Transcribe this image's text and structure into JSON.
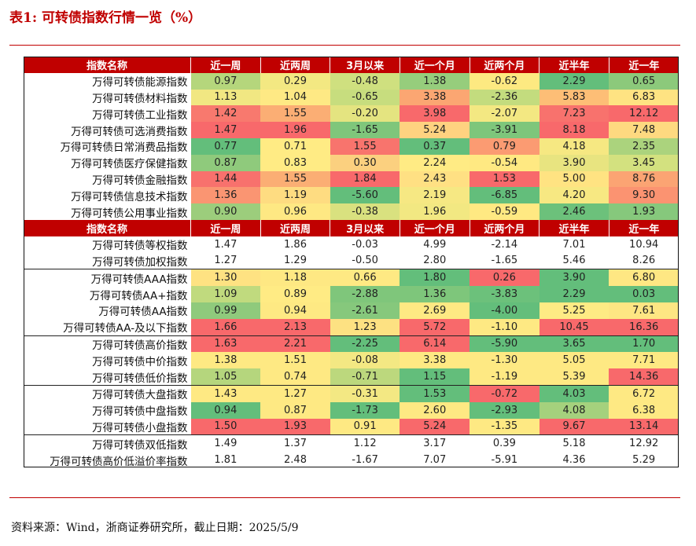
{
  "title": "表1:  可转债指数行情一览（%）",
  "header": [
    "指数名称",
    "近一周",
    "近两周",
    "3月以来",
    "近一个月",
    "近两个月",
    "近半年",
    "近一年"
  ],
  "colors": {
    "header_bg": "#c00000",
    "rule": "#c00000",
    "green": "#63be7b",
    "yellow": "#ffeb84",
    "red": "#f8696b"
  },
  "sections": [
    {
      "has_header": true,
      "groups": [
        [
          {
            "name": "万得可转债能源指数",
            "values": [
              "0.97",
              "0.29",
              "-0.48",
              "1.38",
              "-0.62",
              "2.29",
              "0.65"
            ],
            "colors": [
              "#b5d67c",
              "#f3e882",
              "#cfe07f",
              "#96cd7c",
              "#fde981",
              "#63be7b",
              "#8cc97b"
            ]
          },
          {
            "name": "万得可转债材料指数",
            "values": [
              "1.13",
              "1.04",
              "-0.65",
              "3.38",
              "-2.36",
              "5.83",
              "6.83"
            ],
            "colors": [
              "#f1e782",
              "#fee984",
              "#c7dd7e",
              "#fba672",
              "#c3dc7e",
              "#fdbe76",
              "#fee382"
            ]
          },
          {
            "name": "万得可转债工业指数",
            "values": [
              "1.42",
              "1.55",
              "-0.20",
              "3.98",
              "-2.07",
              "7.23",
              "12.12"
            ],
            "colors": [
              "#f8796e",
              "#fbae74",
              "#e4e480",
              "#f8696b",
              "#f3e882",
              "#f8726d",
              "#f8696b"
            ]
          },
          {
            "name": "万得可转债可选消费指数",
            "values": [
              "1.47",
              "1.96",
              "-1.65",
              "5.24",
              "-3.91",
              "8.18",
              "7.48"
            ],
            "colors": [
              "#f8696b",
              "#f8696b",
              "#7fc67b",
              "#fed280",
              "#7ec67b",
              "#f8696b",
              "#fed980"
            ]
          },
          {
            "name": "万得可转债日常消费品指数",
            "values": [
              "0.77",
              "0.71",
              "1.55",
              "0.37",
              "0.79",
              "4.18",
              "2.35"
            ],
            "colors": [
              "#63be7b",
              "#ffeb84",
              "#f8746d",
              "#63be7b",
              "#fb9b72",
              "#f6e882",
              "#abd37d"
            ]
          },
          {
            "name": "万得可转债医疗保健指数",
            "values": [
              "0.87",
              "0.83",
              "0.30",
              "2.24",
              "-0.54",
              "3.90",
              "3.45"
            ],
            "colors": [
              "#8fca7c",
              "#ffeb84",
              "#fbd07f",
              "#ffeb84",
              "#ffe982",
              "#e8e480",
              "#d3e17f"
            ]
          },
          {
            "name": "万得可转债金融指数",
            "values": [
              "1.44",
              "1.55",
              "1.84",
              "2.43",
              "1.53",
              "5.00",
              "8.76"
            ],
            "colors": [
              "#f8716d",
              "#fbae74",
              "#f8696b",
              "#ffe083",
              "#f8696b",
              "#ffe382",
              "#fba473"
            ]
          },
          {
            "name": "万得可转债信息技术指数",
            "values": [
              "1.36",
              "1.19",
              "-5.60",
              "2.19",
              "-6.85",
              "4.20",
              "9.30"
            ],
            "colors": [
              "#fa9572",
              "#fedc81",
              "#63be7b",
              "#f6e883",
              "#63be7b",
              "#f7e882",
              "#fb9371"
            ]
          },
          {
            "name": "万得可转债公用事业指数",
            "values": [
              "0.90",
              "0.96",
              "-0.38",
              "1.96",
              "-0.59",
              "2.46",
              "1.93"
            ],
            "colors": [
              "#9ccd7c",
              "#fee883",
              "#d9e17f",
              "#f2e882",
              "#ffe982",
              "#6cc17b",
              "#86c87c"
            ]
          }
        ]
      ]
    },
    {
      "has_header": true,
      "groups": [
        [
          {
            "name": "万得可转债等权指数",
            "values": [
              "1.47",
              "1.86",
              "-0.03",
              "4.99",
              "-2.14",
              "7.01",
              "10.94"
            ],
            "colors": [
              "#ffffff",
              "#ffffff",
              "#ffffff",
              "#ffffff",
              "#ffffff",
              "#ffffff",
              "#ffffff"
            ]
          },
          {
            "name": "万得可转债加权指数",
            "values": [
              "1.27",
              "1.29",
              "-0.50",
              "2.80",
              "-1.65",
              "5.46",
              "8.26"
            ],
            "colors": [
              "#ffffff",
              "#ffffff",
              "#ffffff",
              "#ffffff",
              "#ffffff",
              "#ffffff",
              "#ffffff"
            ]
          }
        ],
        [
          {
            "name": "万得可转债AAA指数",
            "values": [
              "1.30",
              "1.18",
              "0.66",
              "1.80",
              "0.26",
              "3.90",
              "6.80"
            ],
            "colors": [
              "#fee282",
              "#fee883",
              "#fee983",
              "#63be7b",
              "#f8696b",
              "#63be7b",
              "#fee783"
            ]
          },
          {
            "name": "万得可转债AA+指数",
            "values": [
              "1.09",
              "0.89",
              "-2.88",
              "1.36",
              "-3.83",
              "2.29",
              "0.03"
            ],
            "colors": [
              "#c0da7e",
              "#ffeb84",
              "#7fc67b",
              "#7ec67b",
              "#6cc17b",
              "#63be7b",
              "#63be7b"
            ]
          },
          {
            "name": "万得可转债AA指数",
            "values": [
              "0.99",
              "0.94",
              "-2.61",
              "2.69",
              "-4.00",
              "5.25",
              "7.61"
            ],
            "colors": [
              "#8fca7c",
              "#fee983",
              "#86c87c",
              "#fee983",
              "#63be7b",
              "#feeb84",
              "#fee683"
            ]
          },
          {
            "name": "万得可转债AA-及以下指数",
            "values": [
              "1.66",
              "2.13",
              "1.23",
              "5.72",
              "-1.10",
              "10.45",
              "16.36"
            ],
            "colors": [
              "#f8696b",
              "#f8696b",
              "#fde182",
              "#f8696b",
              "#fee983",
              "#f8696b",
              "#f8696b"
            ]
          }
        ],
        [
          {
            "name": "万得可转债高价指数",
            "values": [
              "1.63",
              "2.21",
              "-2.25",
              "6.14",
              "-5.90",
              "3.65",
              "1.70"
            ],
            "colors": [
              "#f8696b",
              "#f8696b",
              "#63be7b",
              "#f8696b",
              "#63be7b",
              "#63be7b",
              "#63be7b"
            ]
          },
          {
            "name": "万得可转债中价指数",
            "values": [
              "1.38",
              "1.51",
              "-0.08",
              "3.38",
              "-1.30",
              "5.05",
              "7.71"
            ],
            "colors": [
              "#fee983",
              "#fee983",
              "#f3e883",
              "#fee983",
              "#fee983",
              "#fee983",
              "#fee983"
            ]
          },
          {
            "name": "万得可转债低价指数",
            "values": [
              "1.05",
              "0.74",
              "-0.71",
              "1.15",
              "-1.19",
              "5.39",
              "14.36"
            ],
            "colors": [
              "#b5d67d",
              "#fee983",
              "#bcd87d",
              "#63be7b",
              "#fee983",
              "#fee983",
              "#f8696b"
            ]
          }
        ],
        [
          {
            "name": "万得可转债大盘指数",
            "values": [
              "1.43",
              "1.27",
              "-0.31",
              "1.53",
              "-0.72",
              "4.03",
              "6.72"
            ],
            "colors": [
              "#fee983",
              "#fee983",
              "#f3e883",
              "#63be7b",
              "#f8696b",
              "#63be7b",
              "#fee983"
            ]
          },
          {
            "name": "万得可转债中盘指数",
            "values": [
              "0.94",
              "0.87",
              "-1.73",
              "2.60",
              "-2.93",
              "4.08",
              "6.38"
            ],
            "colors": [
              "#63be7b",
              "#fee983",
              "#63be7b",
              "#fee983",
              "#63be7b",
              "#a5d17d",
              "#fee983"
            ]
          },
          {
            "name": "万得可转债小盘指数",
            "values": [
              "1.50",
              "1.93",
              "0.91",
              "5.24",
              "-1.35",
              "9.67",
              "13.14"
            ],
            "colors": [
              "#f8696b",
              "#f8696b",
              "#fee983",
              "#f8696b",
              "#fee983",
              "#f8696b",
              "#f8696b"
            ]
          }
        ],
        [
          {
            "name": "万得可转债双低指数",
            "values": [
              "1.49",
              "1.37",
              "1.12",
              "3.17",
              "0.39",
              "5.18",
              "12.92"
            ],
            "colors": [
              "#ffffff",
              "#ffffff",
              "#ffffff",
              "#ffffff",
              "#ffffff",
              "#ffffff",
              "#ffffff"
            ]
          },
          {
            "name": "万得可转债高价低溢价率指数",
            "values": [
              "1.81",
              "2.48",
              "-1.67",
              "7.07",
              "-5.91",
              "4.36",
              "5.29"
            ],
            "colors": [
              "#ffffff",
              "#ffffff",
              "#ffffff",
              "#ffffff",
              "#ffffff",
              "#ffffff",
              "#ffffff"
            ]
          }
        ]
      ]
    }
  ],
  "source": "资料来源：Wind，浙商证券研究所，截止日期：2025/5/9"
}
